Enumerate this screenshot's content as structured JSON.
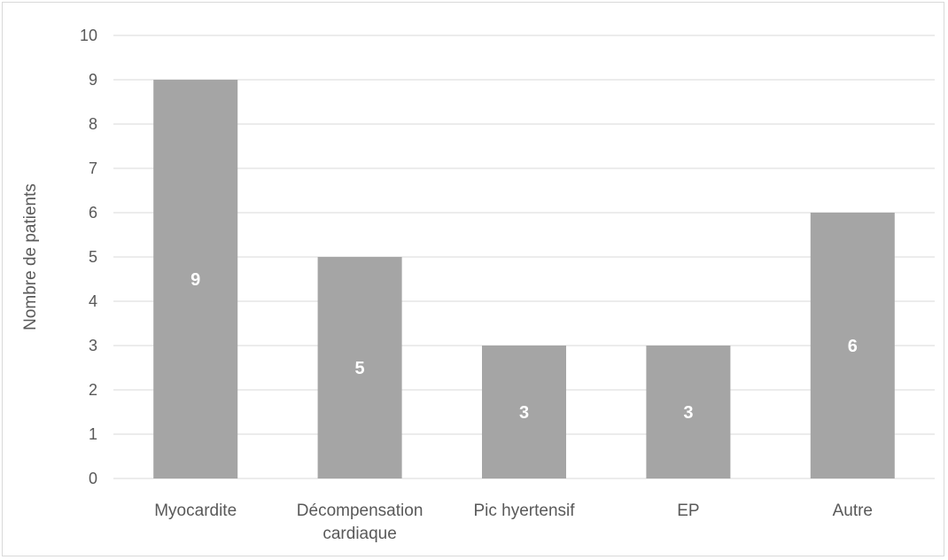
{
  "chart_data": {
    "type": "bar",
    "title": "",
    "xlabel": "",
    "ylabel": "Nombre de patients",
    "ylim": [
      0,
      10
    ],
    "yticks": [
      "0",
      "1",
      "2",
      "3",
      "4",
      "5",
      "6",
      "7",
      "8",
      "9",
      "10"
    ],
    "categories": [
      [
        "Myocardite"
      ],
      [
        "Décompensation",
        "cardiaque"
      ],
      [
        "Pic hyertensif"
      ],
      [
        "EP"
      ],
      [
        "Autre"
      ]
    ],
    "values": [
      9,
      5,
      3,
      3,
      6
    ],
    "data_labels": [
      "9",
      "5",
      "3",
      "3",
      "6"
    ],
    "grid": true,
    "legend": "none",
    "colors": {
      "bar": "#a5a5a5",
      "grid": "#d9d9d9",
      "text": "#595959",
      "label": "#ffffff"
    }
  }
}
